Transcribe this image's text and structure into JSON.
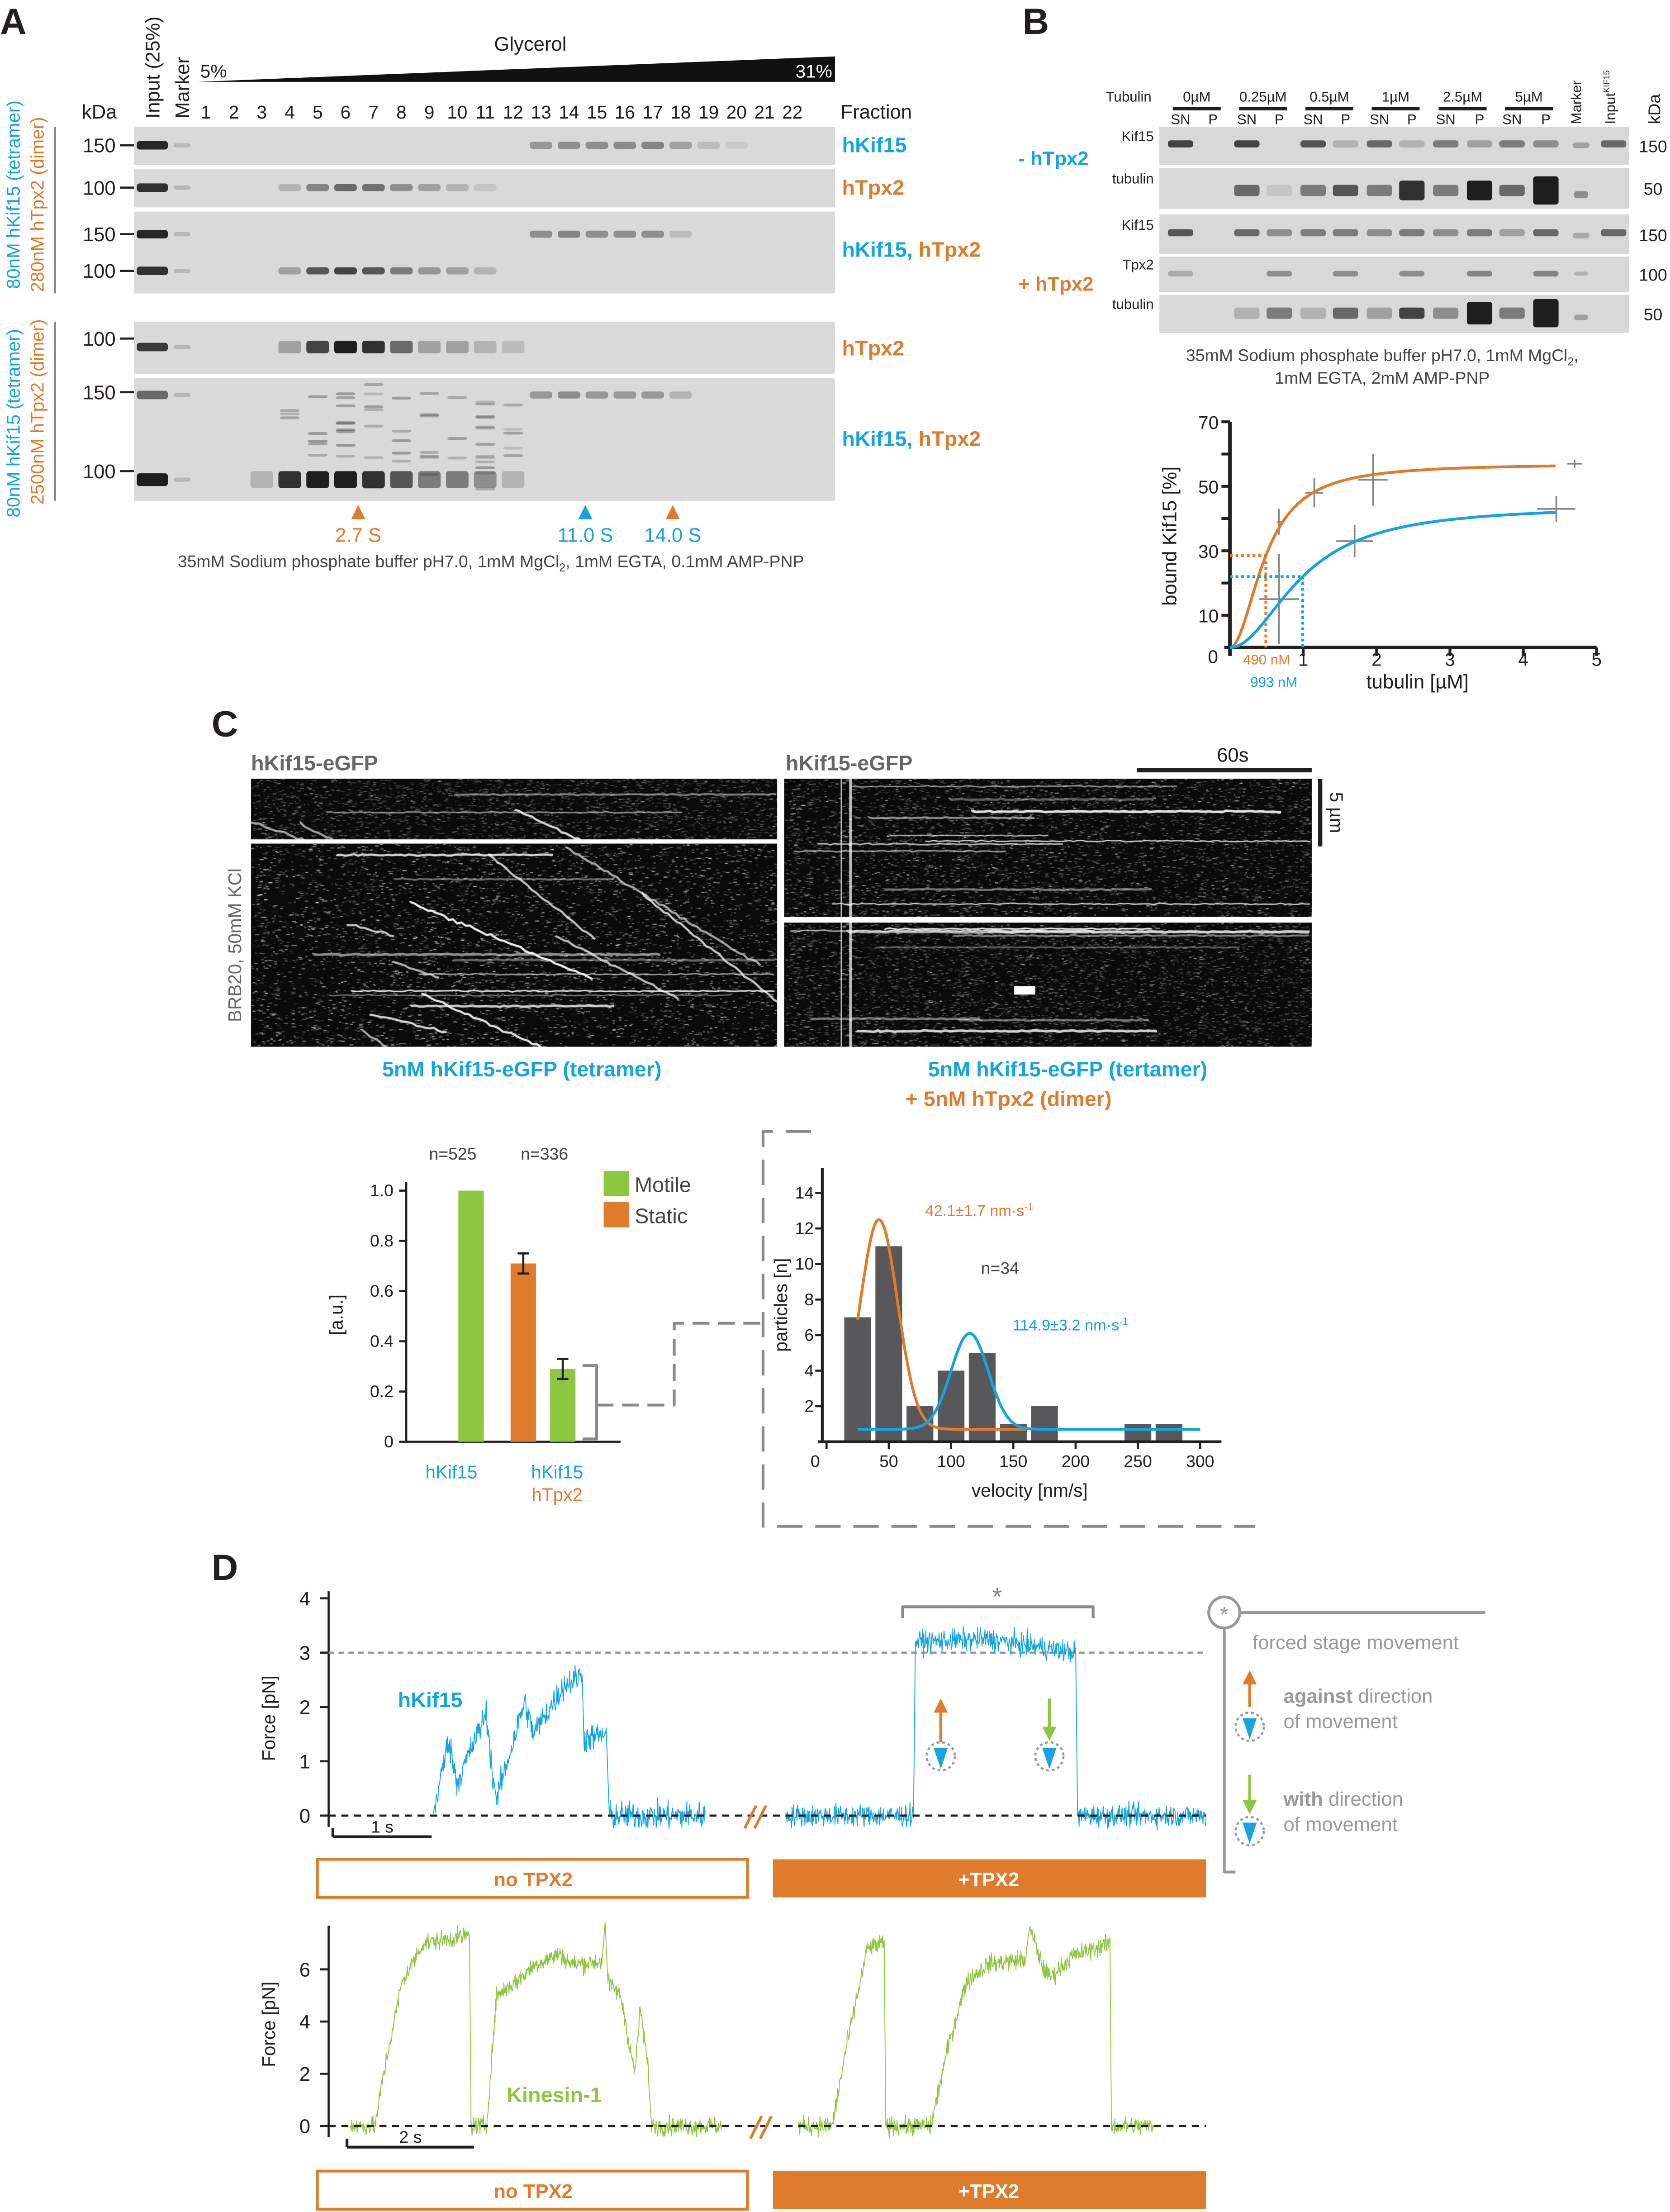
{
  "colors": {
    "blue": "#12a4e3",
    "orange": "#e07b2c",
    "green": "#8dc63f",
    "gray": "#8a8a8a",
    "dark": "#231f20"
  },
  "panels": {
    "A": "A",
    "B": "B",
    "C": "C",
    "D": "D"
  },
  "A": {
    "glycerol": "Glycerol",
    "low": "5%",
    "high": "31%",
    "kda": "kDa",
    "input": "Input (25%)",
    "marker": "Marker",
    "fraction_label": "Fraction",
    "fractions": [
      "1",
      "2",
      "3",
      "4",
      "5",
      "6",
      "7",
      "8",
      "9",
      "10",
      "11",
      "12",
      "13",
      "14",
      "15",
      "16",
      "17",
      "18",
      "19",
      "20",
      "21",
      "22"
    ],
    "group1": {
      "kif": "80nM hKif15 (tetramer)",
      "tpx": "280nM hTpx2 (dimer)"
    },
    "group2": {
      "kif": "80nM hKif15 (tetramer)",
      "tpx": "2500nM hTpx2 (dimer)"
    },
    "mw": {
      "m150": "150",
      "m100": "100"
    },
    "row_labels": {
      "kif": "hKif15",
      "tpx": "hTpx2",
      "comma": ", "
    },
    "peaks": [
      {
        "label": "2.7 S",
        "color": "orange"
      },
      {
        "label": "11.0 S",
        "color": "blue"
      },
      {
        "label": "14.0 S",
        "color": "orange"
      }
    ],
    "caption": {
      "pre": "35mM Sodium phosphate buffer pH7.0, 1mM MgCl",
      "sub": "2",
      "post": ", 1mM EGTA, 0.1mM AMP-PNP"
    }
  },
  "B": {
    "tubulin_label": "Tubulin",
    "concentrations": [
      "0µM",
      "0.25µM",
      "0.5µM",
      "1µM",
      "2.5µM",
      "5µM"
    ],
    "sn": "SN",
    "p": "P",
    "marker": "Marker",
    "input": "Input",
    "input_sub": "KIF15",
    "kda": "kDa",
    "minus_tpx2": "- hTpx2",
    "plus_tpx2": "+ hTpx2",
    "rows": [
      {
        "label": "Kif15",
        "kda": "150"
      },
      {
        "label": "tubulin",
        "kda": "50"
      },
      {
        "label": "Kif15",
        "kda": "150"
      },
      {
        "label": "Tpx2",
        "kda": "100"
      },
      {
        "label": "tubulin",
        "kda": "50"
      }
    ],
    "caption": {
      "line1_pre": "35mM Sodium phosphate buffer pH7.0, 1mM MgCl",
      "line1_sub": "2",
      "line1_post": ",",
      "line2": "1mM EGTA, 2mM AMP-PNP"
    }
  },
  "C": {
    "kymo_title_left": "hKif15-eGFP",
    "kymo_title_right": "hKif15-eGFP",
    "time_scale": "60s",
    "space_scale": "5 µm",
    "buffer": "BRB20, 50mM KCl",
    "caption_left": "5nM hKif15-eGFP (tetramer)",
    "caption_right1": "5nM hKif15-eGFP (tertamer)",
    "caption_right2": "+ 5nM hTpx2 (dimer)",
    "bar_n1": "n=525",
    "bar_n2": "n=336",
    "legend_motile": "Motile",
    "legend_static": "Static",
    "bar_ylabel": "[a.u.]",
    "bar_x1": "hKif15",
    "bar_x2a": "hKif15",
    "bar_x2b": "hTpx2",
    "hist_n": "n=34",
    "fit1": "42.1±1.7 nm·s",
    "fit2": "114.9±3.2 nm·s",
    "fit_sup": "-1",
    "hist_ylabel": "particles [n]",
    "hist_xlabel": "velocity [nm/s]"
  },
  "D": {
    "ylabel": "Force [pN]",
    "hkif15": "hKif15",
    "kinesin": "Kinesin-1",
    "scale_top": "1 s",
    "scale_bottom": "2 s",
    "no_tpx2": "no TPX2",
    "plus_tpx2": "+TPX2",
    "star": "*",
    "legend_forced": "forced stage movement",
    "legend_against_bold": "against",
    "legend_against_rest": " direction",
    "legend_with_bold": "with",
    "legend_with_rest": " direction",
    "legend_of_movement": "of movement"
  },
  "chart_data": [
    {
      "id": "B-binding",
      "type": "line",
      "xlabel": "tubulin [µM]",
      "ylabel": "bound Kif15 [%]",
      "xlim": [
        0,
        5
      ],
      "ylim": [
        0,
        70
      ],
      "xticks": [
        "0",
        "1",
        "2",
        "3",
        "4",
        "5"
      ],
      "yticks": [
        "10",
        "30",
        "50",
        "70"
      ],
      "series": [
        {
          "name": "+ hTpx2",
          "color": "orange",
          "fit_max": 57,
          "fit_half": 0.49,
          "fit_hill": 2,
          "half_label": "490 nM",
          "points": [
            {
              "x": 0.67,
              "y": 39,
              "xerr": 0.03,
              "yerr": 4
            },
            {
              "x": 1.15,
              "y": 48,
              "xerr": 0.12,
              "yerr": 4.5
            },
            {
              "x": 1.95,
              "y": 52,
              "xerr": 0.2,
              "yerr": 8
            },
            {
              "x": 4.7,
              "y": 57,
              "xerr": 0.1,
              "yerr": 1.3
            }
          ]
        },
        {
          "name": "- hTpx2",
          "color": "blue",
          "fit_max": 44,
          "fit_half": 0.993,
          "fit_hill": 2,
          "half_label": "993 nM",
          "points": [
            {
              "x": 0.67,
              "y": 15,
              "xerr": 0.27,
              "yerr": 14
            },
            {
              "x": 1.7,
              "y": 33,
              "xerr": 0.25,
              "yerr": 5
            },
            {
              "x": 4.45,
              "y": 43,
              "xerr": 0.26,
              "yerr": 4
            }
          ]
        }
      ]
    },
    {
      "id": "C-bars",
      "type": "bar",
      "ylabel": "[a.u.]",
      "ylim": [
        0,
        1.0
      ],
      "yticks": [
        "0",
        "0.2",
        "0.4",
        "0.6",
        "0.8",
        "1.0"
      ],
      "groups": [
        "hKif15",
        "hKif15 + hTpx2"
      ],
      "n": [
        "n=525",
        "n=336"
      ],
      "series": [
        {
          "name": "Motile",
          "color": "green",
          "values": [
            1.0,
            0.29
          ],
          "errors": [
            0,
            0.04
          ]
        },
        {
          "name": "Static",
          "color": "orange",
          "values": [
            null,
            0.71
          ],
          "errors": [
            null,
            0.04
          ]
        }
      ]
    },
    {
      "id": "C-histogram",
      "type": "bar",
      "xlabel": "velocity [nm/s]",
      "ylabel": "particles [n]",
      "xlim": [
        0,
        300
      ],
      "ylim": [
        0,
        14
      ],
      "xticks": [
        "0",
        "50",
        "100",
        "150",
        "200",
        "250",
        "300"
      ],
      "yticks": [
        "2",
        "4",
        "6",
        "8",
        "10",
        "12",
        "14"
      ],
      "bins": [
        25,
        50,
        75,
        100,
        125,
        150,
        175,
        200,
        225,
        250,
        275
      ],
      "counts": [
        7,
        11,
        2,
        4,
        5,
        1,
        2,
        0,
        0,
        1,
        1
      ],
      "fits": [
        {
          "color": "orange",
          "mean": 42.1,
          "amplitude": 11.8,
          "sigma": 15,
          "baseline": 0.7
        },
        {
          "color": "blue",
          "mean": 114.9,
          "amplitude": 5.4,
          "sigma": 15,
          "baseline": 0.7
        }
      ]
    },
    {
      "id": "D-hKif15-force",
      "type": "line",
      "ylabel": "Force [pN]",
      "ylim": [
        0,
        4
      ],
      "yticks": [
        "0",
        "1",
        "2",
        "3",
        "4"
      ],
      "reference_force": 3,
      "conditions": [
        "no TPX2",
        "+TPX2"
      ]
    },
    {
      "id": "D-kinesin1-force",
      "type": "line",
      "ylabel": "Force [pN]",
      "ylim": [
        0,
        7.5
      ],
      "yticks": [
        "0",
        "2",
        "4",
        "6"
      ],
      "conditions": [
        "no TPX2",
        "+TPX2"
      ]
    }
  ]
}
